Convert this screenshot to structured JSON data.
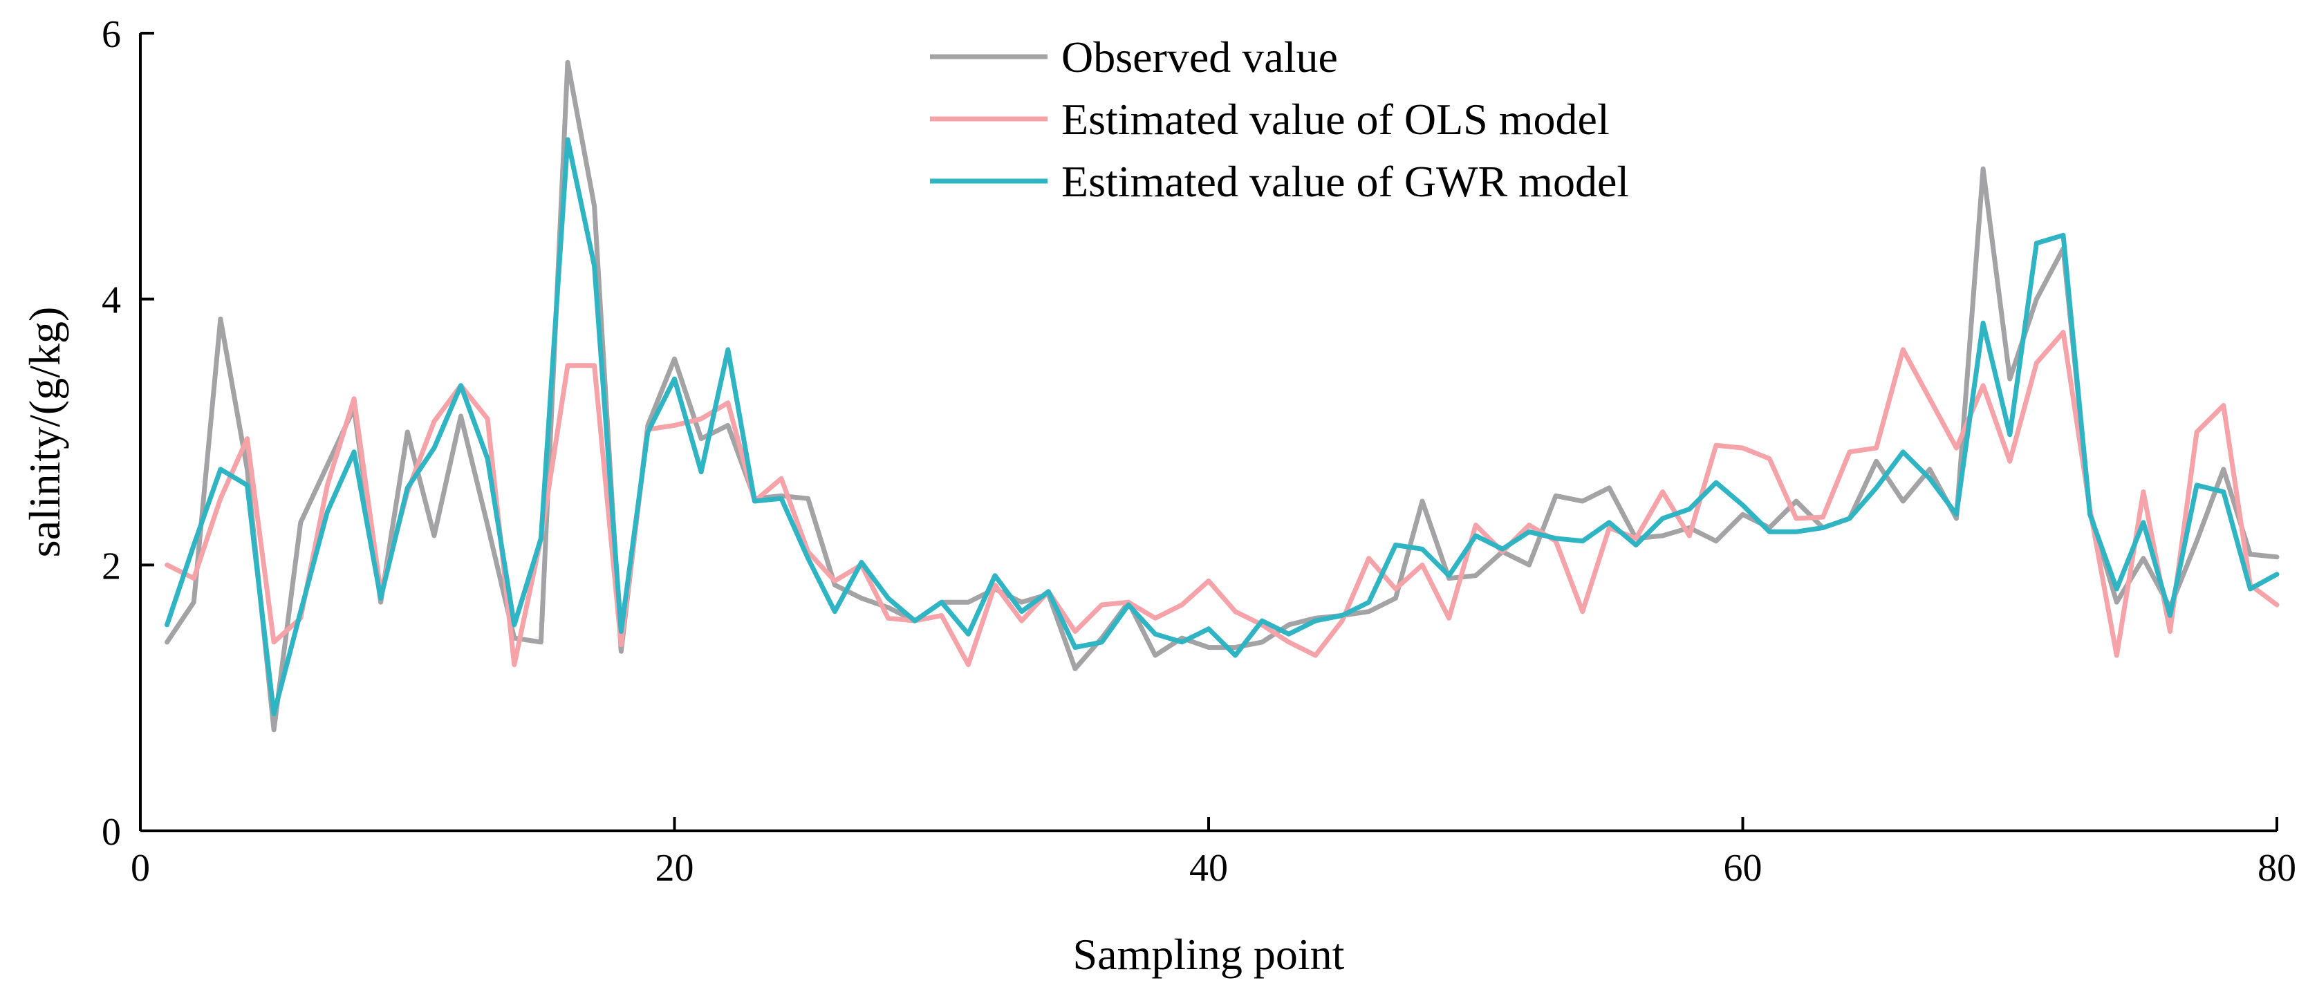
{
  "chart_data": {
    "type": "line",
    "xlabel": "Sampling point",
    "ylabel": "salinity/(g/kg)",
    "xlim": [
      0,
      80
    ],
    "ylim": [
      0,
      6
    ],
    "xticks": [
      0,
      20,
      40,
      60,
      80
    ],
    "yticks": [
      0,
      2,
      4,
      6
    ],
    "grid": false,
    "legend_position": "top-center",
    "x": [
      1,
      2,
      3,
      4,
      5,
      6,
      7,
      8,
      9,
      10,
      11,
      12,
      13,
      14,
      15,
      16,
      17,
      18,
      19,
      20,
      21,
      22,
      23,
      24,
      25,
      26,
      27,
      28,
      29,
      30,
      31,
      32,
      33,
      34,
      35,
      36,
      37,
      38,
      39,
      40,
      41,
      42,
      43,
      44,
      45,
      46,
      47,
      48,
      49,
      50,
      51,
      52,
      53,
      54,
      55,
      56,
      57,
      58,
      59,
      60,
      61,
      62,
      63,
      64,
      65,
      66,
      67,
      68,
      69,
      70,
      71,
      72,
      73,
      74,
      75,
      76,
      77,
      78,
      79,
      80
    ],
    "series": [
      {
        "name": "Observed value",
        "color": "#a3a3a5",
        "values": [
          1.42,
          1.72,
          3.85,
          2.72,
          0.76,
          2.32,
          2.75,
          3.18,
          1.72,
          3.0,
          2.22,
          3.12,
          2.3,
          1.45,
          1.42,
          5.78,
          4.7,
          1.35,
          3.05,
          3.55,
          2.95,
          3.05,
          2.5,
          2.52,
          2.5,
          1.85,
          1.75,
          1.68,
          1.58,
          1.72,
          1.72,
          1.82,
          1.72,
          1.78,
          1.22,
          1.45,
          1.72,
          1.32,
          1.45,
          1.38,
          1.38,
          1.42,
          1.55,
          1.6,
          1.62,
          1.65,
          1.75,
          2.48,
          1.9,
          1.92,
          2.1,
          2.0,
          2.52,
          2.48,
          2.58,
          2.2,
          2.22,
          2.28,
          2.18,
          2.38,
          2.28,
          2.48,
          2.28,
          2.35,
          2.78,
          2.48,
          2.72,
          2.35,
          4.98,
          3.4,
          4.0,
          4.38,
          2.4,
          1.72,
          2.05,
          1.68,
          2.18,
          2.72,
          2.08,
          2.06
        ]
      },
      {
        "name": "Estimated value of OLS model",
        "color": "#f5a3a8",
        "values": [
          2.0,
          1.9,
          2.5,
          2.95,
          1.42,
          1.6,
          2.6,
          3.25,
          1.8,
          2.55,
          3.08,
          3.35,
          3.1,
          1.25,
          2.2,
          3.5,
          3.5,
          1.4,
          3.02,
          3.05,
          3.1,
          3.22,
          2.48,
          2.65,
          2.1,
          1.88,
          2.0,
          1.6,
          1.58,
          1.62,
          1.25,
          1.85,
          1.58,
          1.8,
          1.5,
          1.7,
          1.72,
          1.6,
          1.7,
          1.88,
          1.65,
          1.55,
          1.42,
          1.32,
          1.58,
          2.05,
          1.82,
          2.0,
          1.6,
          2.3,
          2.1,
          2.3,
          2.18,
          1.65,
          2.28,
          2.2,
          2.55,
          2.22,
          2.9,
          2.88,
          2.8,
          2.35,
          2.36,
          2.85,
          2.88,
          3.62,
          3.25,
          2.88,
          3.35,
          2.78,
          3.52,
          3.75,
          2.42,
          1.32,
          2.55,
          1.5,
          3.0,
          3.2,
          1.85,
          1.7
        ]
      },
      {
        "name": "Estimated value of GWR model",
        "color": "#2fb4c4",
        "values": [
          1.55,
          2.15,
          2.72,
          2.6,
          0.88,
          1.65,
          2.4,
          2.85,
          1.75,
          2.58,
          2.88,
          3.35,
          2.8,
          1.55,
          2.2,
          5.2,
          4.25,
          1.5,
          3.0,
          3.4,
          2.7,
          3.62,
          2.48,
          2.5,
          2.05,
          1.65,
          2.02,
          1.75,
          1.58,
          1.72,
          1.48,
          1.92,
          1.65,
          1.8,
          1.38,
          1.42,
          1.7,
          1.48,
          1.42,
          1.52,
          1.32,
          1.58,
          1.48,
          1.58,
          1.62,
          1.72,
          2.15,
          2.12,
          1.92,
          2.22,
          2.12,
          2.25,
          2.2,
          2.18,
          2.32,
          2.15,
          2.35,
          2.42,
          2.62,
          2.45,
          2.25,
          2.25,
          2.28,
          2.35,
          2.58,
          2.85,
          2.65,
          2.38,
          3.82,
          2.98,
          4.42,
          4.48,
          2.38,
          1.82,
          2.32,
          1.62,
          2.6,
          2.55,
          1.82,
          1.93
        ]
      }
    ]
  }
}
